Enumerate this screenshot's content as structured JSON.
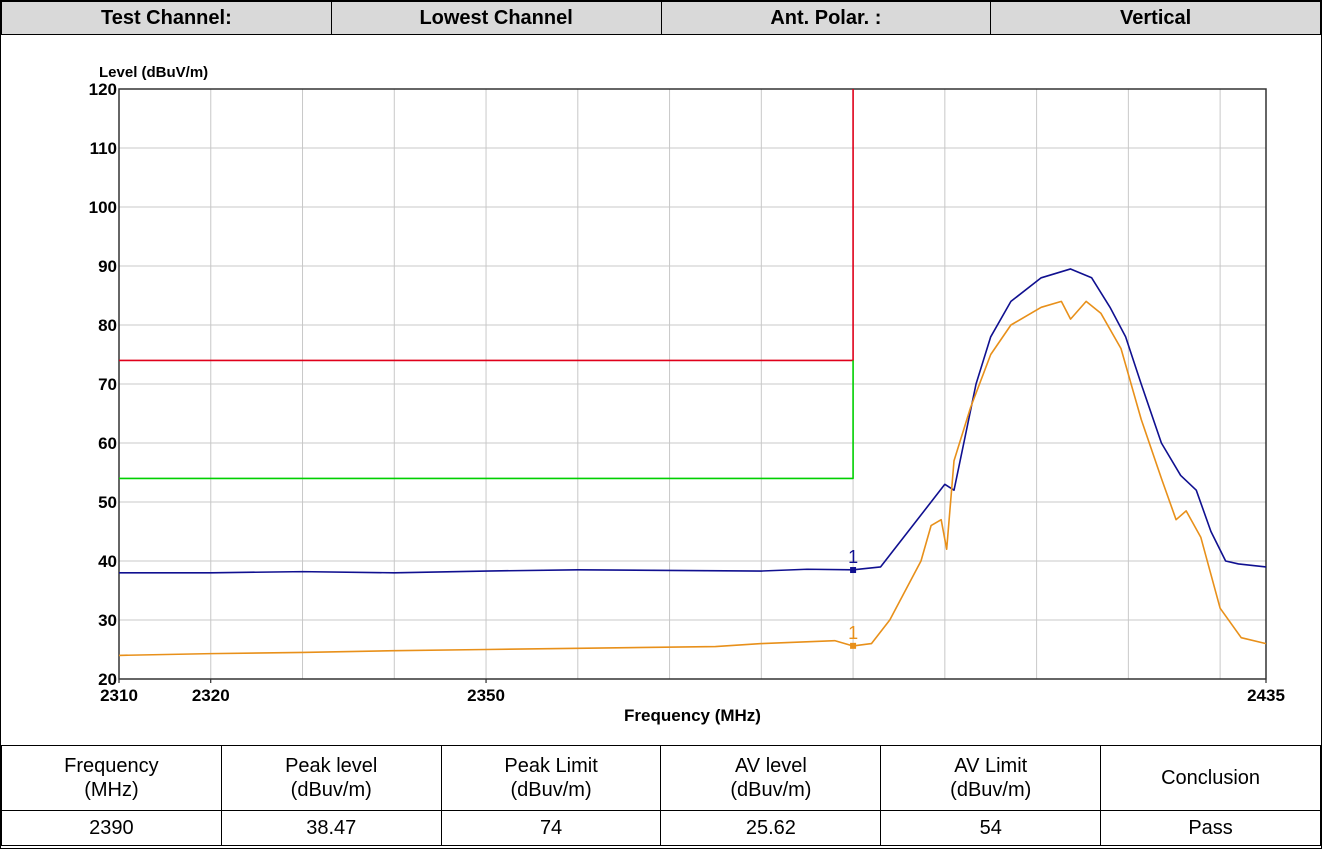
{
  "header": {
    "cells": [
      "Test Channel:",
      "Lowest Channel",
      "Ant. Polar. :",
      "Vertical"
    ]
  },
  "chart_data": {
    "type": "line",
    "ylabel": "Level (dBuV/m)",
    "xlabel": "Frequency (MHz)",
    "xlim": [
      2310,
      2435
    ],
    "ylim": [
      20,
      120
    ],
    "xticks": [
      2310,
      2320,
      2350,
      2435
    ],
    "xgrid": [
      2310,
      2320,
      2330,
      2340,
      2350,
      2360,
      2370,
      2380,
      2390,
      2400,
      2410,
      2420,
      2430,
      2435
    ],
    "yticks": [
      20,
      30,
      40,
      50,
      60,
      70,
      80,
      90,
      100,
      110,
      120
    ],
    "grid": true,
    "series": [
      {
        "name": "Peak Limit",
        "color": "#e0001a",
        "x": [
          2310,
          2390,
          2390
        ],
        "values": [
          74,
          74,
          120
        ]
      },
      {
        "name": "AV Limit",
        "color": "#00d000",
        "x": [
          2310,
          2390,
          2390
        ],
        "values": [
          54,
          54,
          74
        ]
      },
      {
        "name": "Peak",
        "color": "#101090",
        "x": [
          2310,
          2320,
          2330,
          2340,
          2350,
          2360,
          2370,
          2380,
          2385,
          2390,
          2393,
          2396,
          2398.5,
          2400,
          2401,
          2403.4,
          2405,
          2407.2,
          2410.5,
          2413.7,
          2416,
          2418,
          2419.7,
          2421.4,
          2423.6,
          2425.7,
          2427.4,
          2429,
          2430.6,
          2432,
          2435
        ],
        "values": [
          38,
          38,
          38.2,
          38,
          38.3,
          38.5,
          38.4,
          38.3,
          38.6,
          38.5,
          39,
          45,
          50,
          53,
          52,
          70,
          78,
          84,
          88,
          89.5,
          88,
          83,
          78,
          70,
          60,
          54.5,
          52,
          45,
          40,
          39.5,
          39
        ]
      },
      {
        "name": "AV",
        "color": "#e8901a",
        "x": [
          2310,
          2320,
          2330,
          2340,
          2350,
          2360,
          2375,
          2380,
          2388,
          2390,
          2392,
          2394,
          2397.4,
          2398.5,
          2399.6,
          2400.2,
          2401,
          2402.8,
          2405,
          2407.2,
          2410.5,
          2412.7,
          2413.7,
          2415.4,
          2417,
          2419.2,
          2421.4,
          2423.6,
          2425.2,
          2426.3,
          2427.9,
          2430,
          2432.3,
          2435
        ],
        "values": [
          24,
          24.3,
          24.5,
          24.8,
          25,
          25.2,
          25.5,
          26,
          26.5,
          25.6,
          26,
          30,
          40,
          46,
          47,
          42,
          57,
          66,
          75,
          80,
          83,
          84,
          81,
          84,
          82,
          76,
          64,
          54,
          47,
          48.5,
          44,
          32,
          27,
          26
        ]
      }
    ],
    "markers": [
      {
        "label": "1",
        "x": 2390,
        "y": 38.47,
        "color": "#101090"
      },
      {
        "label": "1",
        "x": 2390,
        "y": 25.62,
        "color": "#e8901a"
      }
    ]
  },
  "table": {
    "header": [
      "Frequency\n(MHz)",
      "Peak level\n(dBuv/m)",
      "Peak Limit\n(dBuv/m)",
      "AV level\n(dBuv/m)",
      "AV Limit\n(dBuv/m)",
      "Conclusion"
    ],
    "rows": [
      [
        "2390",
        "38.47",
        "74",
        "25.62",
        "54",
        "Pass"
      ]
    ]
  }
}
